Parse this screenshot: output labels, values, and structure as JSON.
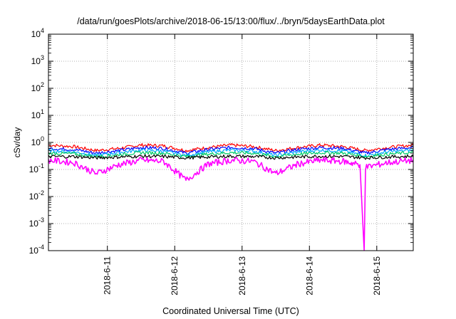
{
  "chart_data": {
    "type": "line",
    "title": "/data/run/goesPlots/archive/2018-06-15/13:00/flux/../bryn/5daysEarthData.plot",
    "xlabel": "Coordinated Universal Time (UTC)",
    "ylabel": "cSv/day",
    "yscale": "log",
    "ylim": [
      0.0001,
      10000
    ],
    "xlim": [
      "2018-06-10T03:00",
      "2018-06-15T13:00"
    ],
    "grid": true,
    "legend": "none",
    "y_ticks": [
      {
        "value": 0.0001,
        "base": "10",
        "exp": "-4"
      },
      {
        "value": 0.001,
        "base": "10",
        "exp": "-3"
      },
      {
        "value": 0.01,
        "base": "10",
        "exp": "-2"
      },
      {
        "value": 0.1,
        "base": "10",
        "exp": "-1"
      },
      {
        "value": 1,
        "base": "10",
        "exp": "0"
      },
      {
        "value": 10,
        "base": "10",
        "exp": "1"
      },
      {
        "value": 100,
        "base": "10",
        "exp": "2"
      },
      {
        "value": 1000,
        "base": "10",
        "exp": "3"
      },
      {
        "value": 10000,
        "base": "10",
        "exp": "4"
      }
    ],
    "x_ticks": [
      "2018-6-11",
      "2018-6-12",
      "2018-6-13",
      "2018-6-14",
      "2018-6-15"
    ],
    "x_tick_dates": [
      "2018-06-11T00:00",
      "2018-06-12T00:00",
      "2018-06-13T00:00",
      "2018-06-14T00:00",
      "2018-06-15T00:00"
    ],
    "series": [
      {
        "color": "#ff0000",
        "x": [
          "2018-06-10T03:00",
          "2018-06-10T12:00",
          "2018-06-10T20:00",
          "2018-06-11T04:00",
          "2018-06-11T12:00",
          "2018-06-11T20:00",
          "2018-06-12T04:00",
          "2018-06-12T12:00",
          "2018-06-12T20:00",
          "2018-06-13T04:00",
          "2018-06-13T12:00",
          "2018-06-13T20:00",
          "2018-06-14T04:00",
          "2018-06-14T12:00",
          "2018-06-14T20:00",
          "2018-06-15T04:00",
          "2018-06-15T13:00"
        ],
        "values": [
          0.8,
          0.7,
          0.5,
          0.6,
          0.8,
          0.75,
          0.5,
          0.65,
          0.8,
          0.7,
          0.5,
          0.65,
          0.8,
          0.7,
          0.5,
          0.65,
          0.8
        ]
      },
      {
        "color": "#0000ff",
        "x": [
          "2018-06-10T03:00",
          "2018-06-10T12:00",
          "2018-06-10T20:00",
          "2018-06-11T04:00",
          "2018-06-11T12:00",
          "2018-06-11T20:00",
          "2018-06-12T04:00",
          "2018-06-12T12:00",
          "2018-06-12T20:00",
          "2018-06-13T04:00",
          "2018-06-13T12:00",
          "2018-06-13T20:00",
          "2018-06-14T04:00",
          "2018-06-14T12:00",
          "2018-06-14T20:00",
          "2018-06-15T04:00",
          "2018-06-15T13:00"
        ],
        "values": [
          0.6,
          0.55,
          0.4,
          0.5,
          0.65,
          0.6,
          0.4,
          0.55,
          0.65,
          0.6,
          0.4,
          0.55,
          0.65,
          0.6,
          0.4,
          0.55,
          0.65
        ]
      },
      {
        "color": "#00aaff",
        "x": [
          "2018-06-10T03:00",
          "2018-06-10T12:00",
          "2018-06-10T20:00",
          "2018-06-11T04:00",
          "2018-06-11T12:00",
          "2018-06-11T20:00",
          "2018-06-12T04:00",
          "2018-06-12T12:00",
          "2018-06-12T20:00",
          "2018-06-13T04:00",
          "2018-06-13T12:00",
          "2018-06-13T20:00",
          "2018-06-14T04:00",
          "2018-06-14T12:00",
          "2018-06-14T20:00",
          "2018-06-15T04:00",
          "2018-06-15T13:00"
        ],
        "values": [
          0.5,
          0.45,
          0.33,
          0.42,
          0.52,
          0.48,
          0.33,
          0.45,
          0.52,
          0.48,
          0.33,
          0.45,
          0.52,
          0.48,
          0.33,
          0.45,
          0.52
        ]
      },
      {
        "color": "#00cc66",
        "x": [
          "2018-06-10T03:00",
          "2018-06-10T12:00",
          "2018-06-10T20:00",
          "2018-06-11T04:00",
          "2018-06-11T12:00",
          "2018-06-11T20:00",
          "2018-06-12T04:00",
          "2018-06-12T12:00",
          "2018-06-12T20:00",
          "2018-06-13T04:00",
          "2018-06-13T12:00",
          "2018-06-13T20:00",
          "2018-06-14T04:00",
          "2018-06-14T12:00",
          "2018-06-14T20:00",
          "2018-06-15T04:00",
          "2018-06-15T13:00"
        ],
        "values": [
          0.4,
          0.38,
          0.3,
          0.35,
          0.42,
          0.4,
          0.3,
          0.37,
          0.42,
          0.4,
          0.3,
          0.37,
          0.42,
          0.4,
          0.3,
          0.37,
          0.42
        ]
      },
      {
        "color": "#000000",
        "x": [
          "2018-06-10T03:00",
          "2018-06-10T12:00",
          "2018-06-10T20:00",
          "2018-06-11T04:00",
          "2018-06-11T12:00",
          "2018-06-11T20:00",
          "2018-06-12T04:00",
          "2018-06-12T12:00",
          "2018-06-12T20:00",
          "2018-06-13T04:00",
          "2018-06-13T12:00",
          "2018-06-13T20:00",
          "2018-06-14T04:00",
          "2018-06-14T12:00",
          "2018-06-14T20:00",
          "2018-06-15T04:00",
          "2018-06-15T13:00"
        ],
        "values": [
          0.3,
          0.3,
          0.27,
          0.29,
          0.31,
          0.3,
          0.27,
          0.29,
          0.31,
          0.3,
          0.27,
          0.29,
          0.31,
          0.3,
          0.27,
          0.29,
          0.31
        ]
      },
      {
        "color": "#ff00ff",
        "x": [
          "2018-06-10T03:00",
          "2018-06-10T12:00",
          "2018-06-10T20:00",
          "2018-06-11T04:00",
          "2018-06-11T12:00",
          "2018-06-11T20:00",
          "2018-06-12T04:00",
          "2018-06-12T12:00",
          "2018-06-12T20:00",
          "2018-06-13T04:00",
          "2018-06-13T12:00",
          "2018-06-13T20:00",
          "2018-06-14T04:00",
          "2018-06-14T12:00",
          "2018-06-14T18:00",
          "2018-06-14T19:30",
          "2018-06-14T20:00",
          "2018-06-15T04:00",
          "2018-06-15T13:00"
        ],
        "values": [
          0.22,
          0.18,
          0.07,
          0.15,
          0.22,
          0.2,
          0.04,
          0.16,
          0.22,
          0.2,
          0.07,
          0.16,
          0.22,
          0.2,
          0.15,
          0.0001,
          0.12,
          0.18,
          0.22
        ]
      }
    ]
  }
}
